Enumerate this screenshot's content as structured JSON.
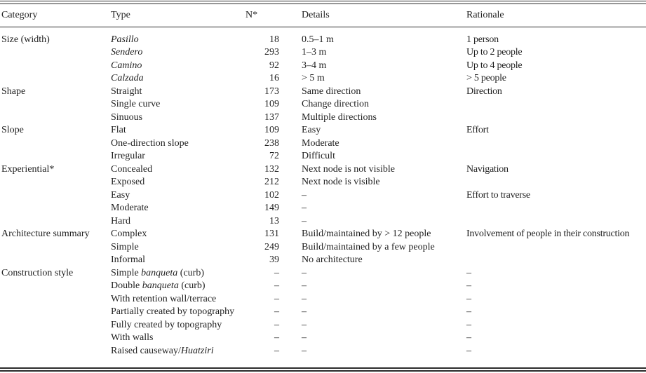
{
  "table": {
    "headers": {
      "category": "Category",
      "type": "Type",
      "n": "N*",
      "details": "Details",
      "rationale": "Rationale"
    },
    "rows": [
      {
        "category": "Size (width)",
        "type": [
          [
            "Pasillo",
            true
          ]
        ],
        "n": "18",
        "details": "0.5–1 m",
        "rationale": "1 person"
      },
      {
        "category": "",
        "type": [
          [
            "Sendero",
            true
          ]
        ],
        "n": "293",
        "details": "1–3 m",
        "rationale": "Up to 2 people"
      },
      {
        "category": "",
        "type": [
          [
            "Camino",
            true
          ]
        ],
        "n": "92",
        "details": "3–4 m",
        "rationale": "Up to 4 people"
      },
      {
        "category": "",
        "type": [
          [
            "Calzada",
            true
          ]
        ],
        "n": "16",
        "details": "> 5 m",
        "rationale": "> 5 people"
      },
      {
        "category": "Shape",
        "type": [
          [
            "Straight",
            false
          ]
        ],
        "n": "173",
        "details": "Same direction",
        "rationale": "Direction"
      },
      {
        "category": "",
        "type": [
          [
            "Single curve",
            false
          ]
        ],
        "n": "109",
        "details": "Change direction",
        "rationale": ""
      },
      {
        "category": "",
        "type": [
          [
            "Sinuous",
            false
          ]
        ],
        "n": "137",
        "details": "Multiple directions",
        "rationale": ""
      },
      {
        "category": "Slope",
        "type": [
          [
            "Flat",
            false
          ]
        ],
        "n": "109",
        "details": "Easy",
        "rationale": "Effort"
      },
      {
        "category": "",
        "type": [
          [
            "One-direction slope",
            false
          ]
        ],
        "n": "238",
        "details": "Moderate",
        "rationale": ""
      },
      {
        "category": "",
        "type": [
          [
            "Irregular",
            false
          ]
        ],
        "n": "72",
        "details": "Difficult",
        "rationale": ""
      },
      {
        "category": "Experiential*",
        "type": [
          [
            "Concealed",
            false
          ]
        ],
        "n": "132",
        "details": "Next node is not visible",
        "rationale": "Navigation"
      },
      {
        "category": "",
        "type": [
          [
            "Exposed",
            false
          ]
        ],
        "n": "212",
        "details": "Next node is visible",
        "rationale": ""
      },
      {
        "category": "",
        "type": [
          [
            "Easy",
            false
          ]
        ],
        "n": "102",
        "details": "–",
        "rationale": "Effort to traverse"
      },
      {
        "category": "",
        "type": [
          [
            "Moderate",
            false
          ]
        ],
        "n": "149",
        "details": "–",
        "rationale": ""
      },
      {
        "category": "",
        "type": [
          [
            "Hard",
            false
          ]
        ],
        "n": "13",
        "details": "–",
        "rationale": ""
      },
      {
        "category": "Architecture summary",
        "type": [
          [
            "Complex",
            false
          ]
        ],
        "n": "131",
        "details": "Build/maintained by > 12 people",
        "rationale": "Involvement of people in their construction"
      },
      {
        "category": "",
        "type": [
          [
            "Simple",
            false
          ]
        ],
        "n": "249",
        "details": "Build/maintained by a few people",
        "rationale": ""
      },
      {
        "category": "",
        "type": [
          [
            "Informal",
            false
          ]
        ],
        "n": "39",
        "details": "No architecture",
        "rationale": ""
      },
      {
        "category": "Construction style",
        "type": [
          [
            "Simple ",
            false
          ],
          [
            "banqueta",
            true
          ],
          [
            " (curb)",
            false
          ]
        ],
        "n": "–",
        "details": "–",
        "rationale": "–"
      },
      {
        "category": "",
        "type": [
          [
            "Double ",
            false
          ],
          [
            "banqueta",
            true
          ],
          [
            " (curb)",
            false
          ]
        ],
        "n": "–",
        "details": "–",
        "rationale": "–"
      },
      {
        "category": "",
        "type": [
          [
            "With retention wall/terrace",
            false
          ]
        ],
        "n": "–",
        "details": "–",
        "rationale": "–"
      },
      {
        "category": "",
        "type": [
          [
            "Partially created by topography",
            false
          ]
        ],
        "n": "–",
        "details": "–",
        "rationale": "–"
      },
      {
        "category": "",
        "type": [
          [
            "Fully created by topography",
            false
          ]
        ],
        "n": "–",
        "details": "–",
        "rationale": "–"
      },
      {
        "category": "",
        "type": [
          [
            "With walls",
            false
          ]
        ],
        "n": "–",
        "details": "–",
        "rationale": "–"
      },
      {
        "category": "",
        "type": [
          [
            "Raised causeway/",
            false
          ],
          [
            "Huatziri",
            true
          ]
        ],
        "n": "–",
        "details": "–",
        "rationale": "–"
      }
    ]
  },
  "colors": {
    "text": "#1f1f1f",
    "rule": "#2b2b2b",
    "background": "#ffffff"
  }
}
